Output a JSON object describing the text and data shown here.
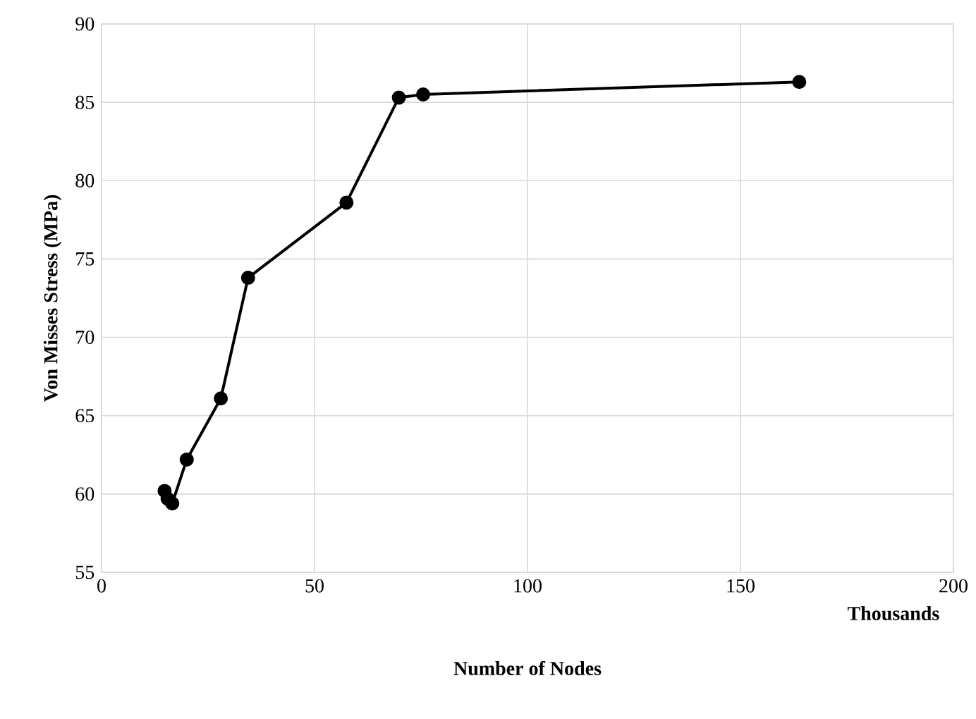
{
  "chart_data": {
    "type": "line",
    "xlabel": "Number of Nodes",
    "ylabel": "Von Misses Stress (MPa)",
    "annotations": [
      "Thousands"
    ],
    "x": [
      14.8,
      15.5,
      16.6,
      20.0,
      28.0,
      34.4,
      57.5,
      69.8,
      75.5,
      163.8
    ],
    "series": [
      {
        "color": "#000000",
        "values": [
          60.2,
          59.7,
          59.4,
          62.2,
          66.1,
          73.8,
          78.6,
          85.3,
          85.5,
          86.3
        ]
      }
    ],
    "xlim": [
      0,
      200
    ],
    "xticks": [
      0,
      50,
      100,
      150,
      200
    ],
    "ylim": [
      55,
      90
    ],
    "yticks": [
      55,
      60,
      65,
      70,
      75,
      80,
      85,
      90
    ],
    "grid": true,
    "marker": "circle",
    "line_style": "solid"
  }
}
